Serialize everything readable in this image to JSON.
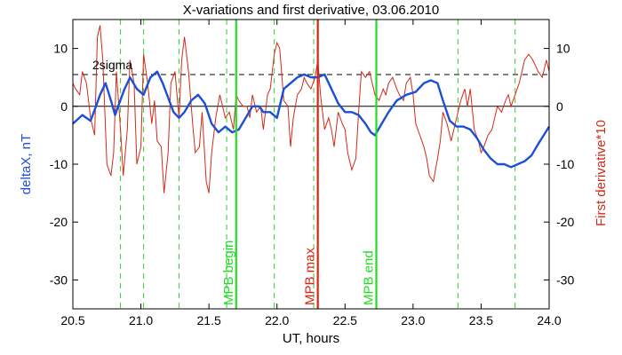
{
  "chart_data": {
    "type": "line",
    "title": "X-variations and first derivative, 03.06.2010",
    "xlabel": "UT, hours",
    "ylabel_left": "deltaX, nT",
    "ylabel_right": "First derivative*10",
    "xlim": [
      20.5,
      24.0
    ],
    "ylim": [
      -35,
      15
    ],
    "x_ticks": [
      "20.5",
      "21.0",
      "21.5",
      "22.0",
      "22.5",
      "23.0",
      "23.5",
      "24.0"
    ],
    "y_ticks": [
      "-30",
      "-20",
      "-10",
      "0",
      "10"
    ],
    "grid": false,
    "sigma_label": "2sigma",
    "sigma_level": 5.5,
    "zero_level": 0,
    "colors": {
      "deltaX": "#1a4fd6",
      "derivative": "#d42a1a",
      "mpb_bound": "#22dd22",
      "mpb_max": "#dd2211",
      "dashed_green": "#33cc33"
    },
    "series": [
      {
        "name": "deltaX, nT",
        "x": [
          20.5,
          20.57,
          20.63,
          20.67,
          20.7,
          20.74,
          20.78,
          20.81,
          20.84,
          20.88,
          20.92,
          20.97,
          21.02,
          21.07,
          21.12,
          21.16,
          21.2,
          21.24,
          21.28,
          21.32,
          21.37,
          21.42,
          21.47,
          21.52,
          21.57,
          21.62,
          21.67,
          21.72,
          21.77,
          21.82,
          21.87,
          21.9,
          21.95,
          22.0,
          22.05,
          22.1,
          22.15,
          22.2,
          22.25,
          22.3,
          22.35,
          22.4,
          22.45,
          22.5,
          22.55,
          22.6,
          22.65,
          22.69,
          22.72,
          22.77,
          22.82,
          22.88,
          22.95,
          23.02,
          23.08,
          23.13,
          23.18,
          23.22,
          23.27,
          23.32,
          23.37,
          23.42,
          23.47,
          23.52,
          23.57,
          23.62,
          23.67,
          23.72,
          23.77,
          23.82,
          23.87,
          23.92,
          23.96,
          24.0
        ],
        "values": [
          -3,
          -1.5,
          -2.5,
          0,
          2,
          4,
          1,
          -1.5,
          0.5,
          3,
          5,
          3,
          2,
          5,
          6,
          4,
          1.5,
          -1,
          -2,
          -1,
          1,
          2,
          0.5,
          -3,
          -4.5,
          -3.5,
          -4.5,
          -4,
          -2,
          0,
          0,
          -1,
          -1,
          -2,
          3,
          4,
          5,
          5.5,
          5,
          5,
          5.5,
          3,
          0.5,
          -1,
          -1,
          -1.5,
          -3,
          -4.5,
          -5,
          -3,
          -1,
          1,
          2,
          2.5,
          4,
          4.5,
          4,
          1,
          -2.5,
          -3.5,
          -3.5,
          -4,
          -5.5,
          -7.5,
          -9,
          -10,
          -10,
          -10.5,
          -10,
          -9.5,
          -8.5,
          -6.5,
          -5,
          -3.5
        ]
      },
      {
        "name": "First derivative*10",
        "x": [
          20.5,
          20.52,
          20.55,
          20.57,
          20.6,
          20.63,
          20.66,
          20.68,
          20.7,
          20.72,
          20.75,
          20.78,
          20.8,
          20.82,
          20.85,
          20.87,
          20.9,
          20.92,
          20.95,
          20.97,
          21.0,
          21.02,
          21.05,
          21.08,
          21.1,
          21.12,
          21.15,
          21.17,
          21.2,
          21.22,
          21.25,
          21.28,
          21.3,
          21.32,
          21.35,
          21.38,
          21.4,
          21.43,
          21.45,
          21.48,
          21.5,
          21.52,
          21.55,
          21.58,
          21.6,
          21.62,
          21.65,
          21.68,
          21.7,
          21.72,
          21.75,
          21.78,
          21.8,
          21.82,
          21.85,
          21.88,
          21.9,
          21.93,
          21.95,
          21.98,
          22.0,
          22.02,
          22.05,
          22.08,
          22.1,
          22.12,
          22.15,
          22.18,
          22.2,
          22.22,
          22.25,
          22.28,
          22.3,
          22.32,
          22.35,
          22.38,
          22.4,
          22.42,
          22.45,
          22.48,
          22.5,
          22.52,
          22.55,
          22.58,
          22.6,
          22.62,
          22.65,
          22.68,
          22.7,
          22.72,
          22.75,
          22.78,
          22.8,
          22.82,
          22.85,
          22.88,
          22.9,
          22.93,
          22.95,
          22.98,
          23.0,
          23.02,
          23.05,
          23.08,
          23.1,
          23.12,
          23.15,
          23.18,
          23.2,
          23.22,
          23.25,
          23.28,
          23.3,
          23.32,
          23.35,
          23.38,
          23.4,
          23.42,
          23.45,
          23.48,
          23.5,
          23.52,
          23.55,
          23.58,
          23.6,
          23.62,
          23.65,
          23.68,
          23.7,
          23.72,
          23.75,
          23.78,
          23.8,
          23.82,
          23.85,
          23.88,
          23.9,
          23.92,
          23.95,
          23.98,
          24.0
        ],
        "values": [
          4,
          3,
          2,
          6,
          4,
          -2,
          -5,
          12,
          14,
          8,
          -10,
          -12,
          -8,
          6,
          -4,
          -12,
          -4,
          8,
          4,
          -10,
          -7,
          9,
          4,
          -3,
          1,
          -6,
          -7,
          -15,
          -8,
          4,
          6,
          -2,
          8,
          12,
          6,
          -3,
          -8,
          -7,
          -1,
          -13,
          -15,
          -8,
          -2,
          2,
          0,
          -2,
          -1,
          -4,
          2,
          1,
          0,
          0,
          -2,
          2,
          -1,
          0,
          -4,
          2,
          3,
          9,
          11,
          10,
          1,
          0,
          -7,
          -2,
          2,
          3,
          5,
          4,
          3,
          5,
          8,
          2,
          -4,
          -2,
          -4,
          -7,
          -1,
          -3,
          -4,
          -8,
          -11,
          -9,
          -1,
          6,
          5,
          6,
          4,
          2,
          1,
          3,
          2,
          4,
          5,
          3,
          2,
          1,
          4,
          5,
          2,
          -3,
          -5,
          -7,
          -9,
          -12,
          -13,
          -9,
          -6,
          -1,
          -3,
          -6,
          -4,
          -2,
          1,
          3,
          0,
          3,
          -4,
          -6,
          -8,
          -7,
          -5,
          -4,
          -2,
          0,
          -1,
          1,
          2,
          0,
          2,
          4,
          6,
          8,
          9,
          8,
          7,
          6,
          5,
          8,
          6
        ]
      }
    ],
    "vertical_lines": [
      {
        "x": 21.7,
        "kind": "mpb_bound",
        "label": "MPB begin"
      },
      {
        "x": 22.3,
        "kind": "mpb_max",
        "label": "MPB max"
      },
      {
        "x": 22.73,
        "kind": "mpb_bound",
        "label": "MPB end"
      }
    ],
    "dashed_lines_x": [
      20.85,
      21.02,
      21.28,
      21.63,
      21.98,
      22.27,
      23.33,
      23.75
    ]
  }
}
